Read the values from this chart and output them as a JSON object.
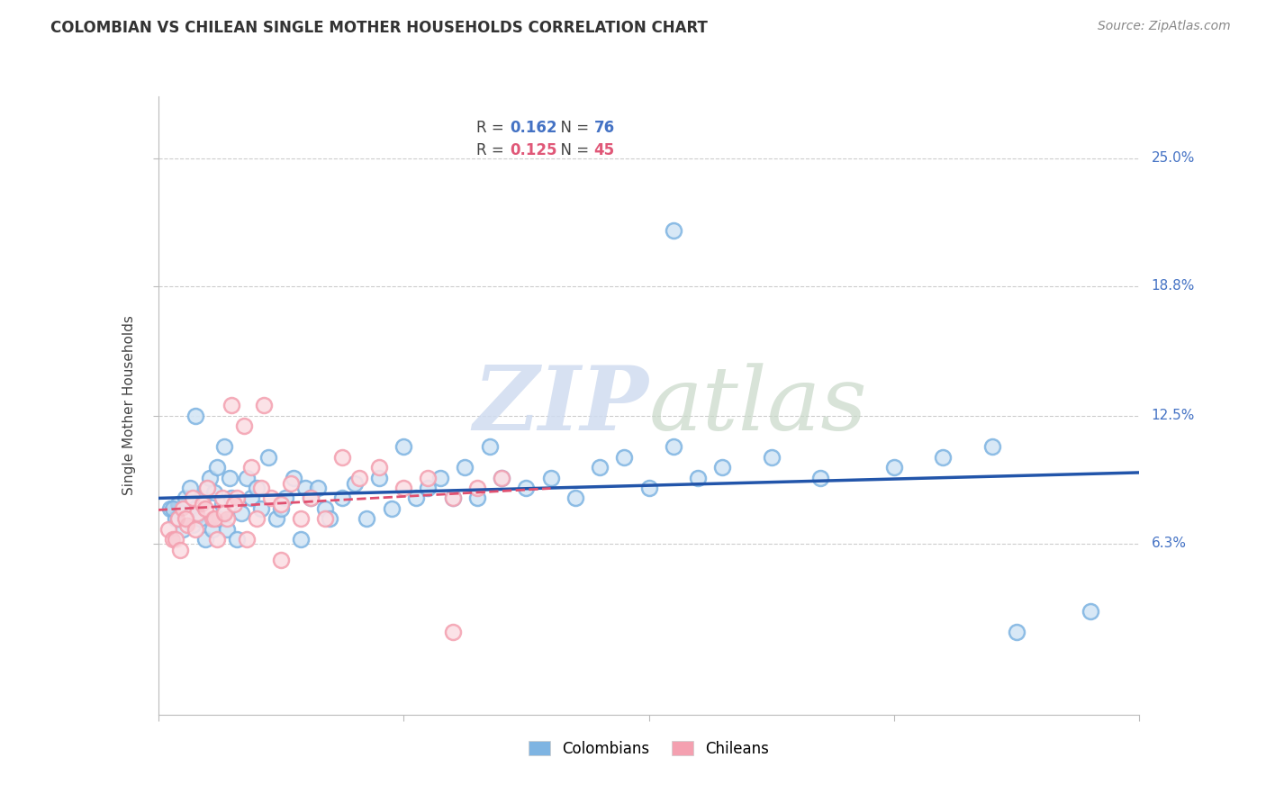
{
  "title": "COLOMBIAN VS CHILEAN SINGLE MOTHER HOUSEHOLDS CORRELATION CHART",
  "source": "Source: ZipAtlas.com",
  "ylabel": "Single Mother Households",
  "xlim": [
    0.0,
    0.4
  ],
  "ylim": [
    -0.02,
    0.28
  ],
  "yticks": [
    0.063,
    0.125,
    0.188,
    0.25
  ],
  "ytick_labels": [
    "6.3%",
    "12.5%",
    "18.8%",
    "25.0%"
  ],
  "xticks": [
    0.0,
    0.1,
    0.2,
    0.3,
    0.4
  ],
  "colombian_R": 0.162,
  "colombian_N": 76,
  "chilean_R": 0.125,
  "chilean_N": 45,
  "colombian_color": "#7EB4E2",
  "chilean_color": "#F4A0B0",
  "colombian_line_color": "#2255AA",
  "chilean_line_color": "#E05070",
  "watermark_zip": "ZIP",
  "watermark_atlas": "atlas",
  "background_color": "#FFFFFF",
  "grid_color": "#CCCCCC",
  "colombian_scatter_x": [
    0.005,
    0.007,
    0.008,
    0.009,
    0.01,
    0.011,
    0.012,
    0.013,
    0.014,
    0.015,
    0.016,
    0.017,
    0.018,
    0.019,
    0.02,
    0.021,
    0.022,
    0.023,
    0.024,
    0.025,
    0.026,
    0.027,
    0.028,
    0.029,
    0.03,
    0.032,
    0.034,
    0.036,
    0.038,
    0.04,
    0.042,
    0.045,
    0.048,
    0.05,
    0.052,
    0.055,
    0.058,
    0.06,
    0.062,
    0.065,
    0.068,
    0.07,
    0.075,
    0.08,
    0.085,
    0.09,
    0.095,
    0.1,
    0.105,
    0.11,
    0.115,
    0.12,
    0.125,
    0.13,
    0.135,
    0.14,
    0.15,
    0.16,
    0.17,
    0.18,
    0.19,
    0.2,
    0.21,
    0.22,
    0.23,
    0.25,
    0.27,
    0.3,
    0.32,
    0.34,
    0.006,
    0.008,
    0.21,
    0.015,
    0.38,
    0.35
  ],
  "colombian_scatter_y": [
    0.08,
    0.075,
    0.082,
    0.078,
    0.07,
    0.085,
    0.076,
    0.09,
    0.072,
    0.08,
    0.076,
    0.075,
    0.085,
    0.065,
    0.09,
    0.095,
    0.07,
    0.088,
    0.1,
    0.075,
    0.082,
    0.11,
    0.07,
    0.095,
    0.085,
    0.065,
    0.078,
    0.095,
    0.085,
    0.09,
    0.08,
    0.105,
    0.075,
    0.08,
    0.085,
    0.095,
    0.065,
    0.09,
    0.085,
    0.09,
    0.08,
    0.075,
    0.085,
    0.092,
    0.075,
    0.095,
    0.08,
    0.11,
    0.085,
    0.09,
    0.095,
    0.085,
    0.1,
    0.085,
    0.11,
    0.095,
    0.09,
    0.095,
    0.085,
    0.1,
    0.105,
    0.09,
    0.11,
    0.095,
    0.1,
    0.105,
    0.095,
    0.1,
    0.105,
    0.11,
    0.08,
    0.075,
    0.215,
    0.125,
    0.03,
    0.02
  ],
  "chilean_scatter_x": [
    0.004,
    0.006,
    0.008,
    0.01,
    0.012,
    0.014,
    0.016,
    0.018,
    0.02,
    0.022,
    0.024,
    0.026,
    0.028,
    0.03,
    0.032,
    0.035,
    0.038,
    0.04,
    0.043,
    0.046,
    0.05,
    0.054,
    0.058,
    0.062,
    0.068,
    0.075,
    0.082,
    0.09,
    0.1,
    0.11,
    0.12,
    0.13,
    0.14,
    0.007,
    0.009,
    0.011,
    0.015,
    0.019,
    0.023,
    0.027,
    0.031,
    0.036,
    0.042,
    0.05,
    0.12
  ],
  "chilean_scatter_y": [
    0.07,
    0.065,
    0.075,
    0.08,
    0.072,
    0.085,
    0.078,
    0.082,
    0.09,
    0.075,
    0.065,
    0.085,
    0.075,
    0.13,
    0.085,
    0.12,
    0.1,
    0.075,
    0.13,
    0.085,
    0.082,
    0.092,
    0.075,
    0.085,
    0.075,
    0.105,
    0.095,
    0.1,
    0.09,
    0.095,
    0.085,
    0.09,
    0.095,
    0.065,
    0.06,
    0.075,
    0.07,
    0.08,
    0.075,
    0.078,
    0.082,
    0.065,
    0.09,
    0.055,
    0.02
  ]
}
